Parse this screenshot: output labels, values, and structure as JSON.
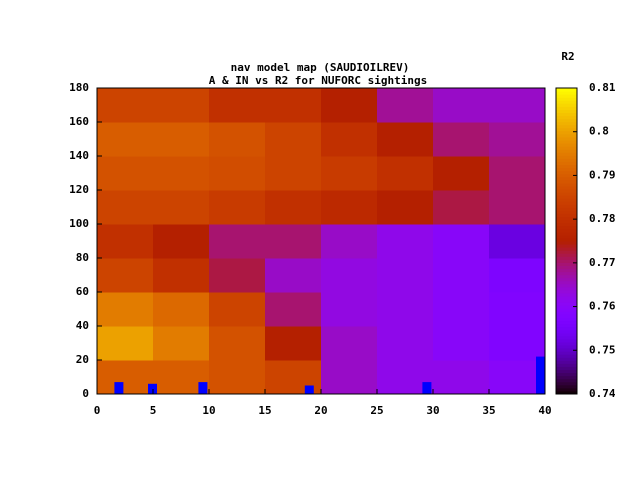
{
  "chart_data": {
    "type": "heatmap",
    "title": "nav model map (SAUDIOILREV)",
    "subtitle": "A & IN vs R2 for NUFORC sightings",
    "colorbar_label": "R2",
    "colormap": "gnuplot",
    "x_bins": [
      0,
      5,
      10,
      15,
      20,
      25,
      30,
      35,
      40
    ],
    "y_bins": [
      0,
      20,
      40,
      60,
      80,
      100,
      120,
      140,
      160,
      180
    ],
    "z": [
      [
        0.79,
        0.79,
        0.788,
        0.785,
        0.765,
        0.762,
        0.762,
        0.76
      ],
      [
        0.8,
        0.795,
        0.788,
        0.775,
        0.765,
        0.762,
        0.76,
        0.758
      ],
      [
        0.795,
        0.792,
        0.785,
        0.77,
        0.763,
        0.762,
        0.76,
        0.758
      ],
      [
        0.785,
        0.78,
        0.772,
        0.765,
        0.763,
        0.762,
        0.76,
        0.757
      ],
      [
        0.78,
        0.775,
        0.77,
        0.77,
        0.765,
        0.762,
        0.76,
        0.752
      ],
      [
        0.785,
        0.785,
        0.783,
        0.78,
        0.778,
        0.775,
        0.772,
        0.77
      ],
      [
        0.788,
        0.788,
        0.787,
        0.785,
        0.783,
        0.78,
        0.775,
        0.77
      ],
      [
        0.79,
        0.79,
        0.788,
        0.785,
        0.78,
        0.775,
        0.77,
        0.768
      ],
      [
        0.785,
        0.785,
        0.78,
        0.78,
        0.775,
        0.768,
        0.765,
        0.765
      ]
    ],
    "xlim": [
      0,
      40
    ],
    "xticks": [
      0,
      5,
      10,
      15,
      20,
      25,
      30,
      35,
      40
    ],
    "ylim": [
      0,
      180
    ],
    "yticks": [
      0,
      20,
      40,
      60,
      80,
      100,
      120,
      140,
      160,
      180
    ],
    "cblim": [
      0.74,
      0.81
    ],
    "cbticks": [
      0.74,
      0.75,
      0.76,
      0.77,
      0.78,
      0.79,
      0.8,
      0.81
    ],
    "overlay": {
      "color": "#0000ff",
      "x": [
        2,
        5,
        9.5,
        19,
        29.5,
        40
      ],
      "y": [
        7,
        6,
        7,
        5,
        7,
        22
      ]
    }
  }
}
